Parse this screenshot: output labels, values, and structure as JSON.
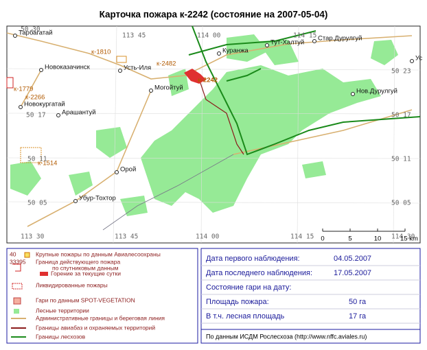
{
  "title": "Карточка пожара к-2242 (состояние на 2007-05-04)",
  "map": {
    "places": [
      "Тарбагатай",
      "Новоказачинск",
      "Усть-Иля",
      "Куранжа",
      "Тут-Халтуй",
      "Стар.Дурулгуй",
      "Ус",
      "Могойтуй",
      "Новокургатай",
      "Арашантуй",
      "Нов.Дурулгуй",
      "Орой",
      "Убур-Тохтор"
    ],
    "fires": [
      "к-1810",
      "к-2482",
      "к-2242",
      "к-1779",
      "к-2266",
      "к-1514"
    ],
    "coords": [
      "50 30",
      "113 45",
      "114 00",
      "114 15",
      "50 23",
      "50 17",
      "50 17",
      "50 11",
      "50 11",
      "50 05",
      "50 05",
      "113 30",
      "113 45",
      "114 00",
      "114 15",
      "114 30"
    ],
    "scale": [
      "0",
      "5",
      "10",
      "15 km"
    ]
  },
  "legend": {
    "items": [
      {
        "code": "40",
        "text": "Крупные пожары по данным Авиалесоохраны"
      },
      {
        "code": "33395",
        "text": "Граница действующего пожара",
        "text2": "по спутниковым данным"
      },
      {
        "text": "Горение за текущие сутки"
      },
      {
        "text": "Ликвидированные пожары"
      },
      {
        "text": "Гари по данным SPOT-VEGETATION"
      },
      {
        "text": "Лесные территории"
      },
      {
        "text": "Административные границы и береговая линия"
      },
      {
        "text": "Границы авиабаз и охраняемых территорий"
      },
      {
        "text": "Границы лесхозов"
      }
    ]
  },
  "info": {
    "rows": [
      {
        "label": "Дата первого наблюдения:",
        "value": "04.05.2007"
      },
      {
        "label": "Дата последнего наблюдения:",
        "value": "17.05.2007"
      },
      {
        "label": "Состояние гари на дату:"
      },
      {
        "label": "Площадь пожара:",
        "value": "50 га"
      },
      {
        "label": "В т.ч. лесная площадь",
        "value": "17 га"
      }
    ],
    "source": "По данным ИСДМ Рослесхоза (http://www.nffc.aviales.ru)"
  }
}
